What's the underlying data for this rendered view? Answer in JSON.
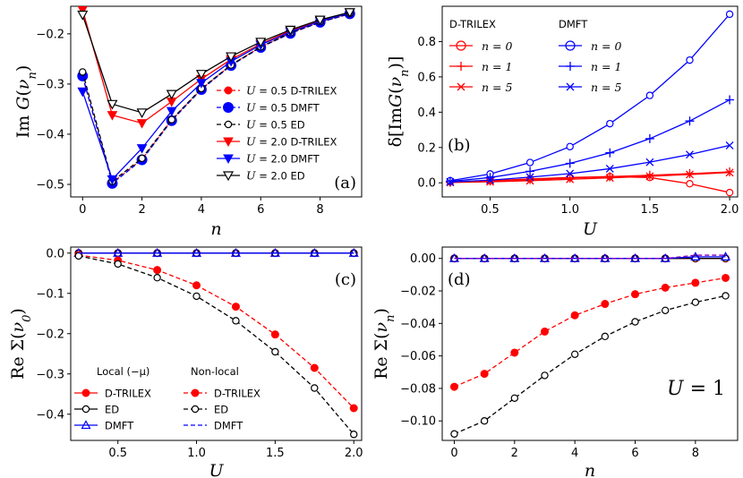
{
  "chart_data": [
    {
      "panel": "(a)",
      "type": "line",
      "xlabel": "n",
      "ylabel": "Im G(ν_n)",
      "xlim": [
        -0.4,
        9.4
      ],
      "ylim": [
        -0.525,
        -0.145
      ],
      "xticks": [
        0,
        2,
        4,
        6,
        8
      ],
      "yticks": [
        -0.5,
        -0.4,
        -0.3,
        -0.2
      ],
      "ytick_labels": [
        "−0.5",
        "−0.4",
        "−0.3",
        "−0.2"
      ],
      "legend_position": "center-right",
      "x": [
        0,
        1,
        2,
        3,
        4,
        5,
        6,
        7,
        8,
        9
      ],
      "series": [
        {
          "name": "U = 0.5 D-TRILEX",
          "color": "#ff0000",
          "marker": "dot",
          "dash": true,
          "values": [
            -0.285,
            -0.497,
            -0.45,
            -0.372,
            -0.31,
            -0.262,
            -0.226,
            -0.198,
            -0.177,
            -0.16
          ]
        },
        {
          "name": "U = 0.5 DMFT",
          "color": "#0000ff",
          "marker": "bigdot",
          "dash": true,
          "values": [
            -0.284,
            -0.498,
            -0.451,
            -0.373,
            -0.311,
            -0.263,
            -0.227,
            -0.199,
            -0.177,
            -0.16
          ]
        },
        {
          "name": "U = 0.5 ED",
          "color": "#000000",
          "marker": "circle",
          "dash": true,
          "values": [
            -0.276,
            -0.494,
            -0.448,
            -0.371,
            -0.309,
            -0.262,
            -0.226,
            -0.198,
            -0.176,
            -0.159
          ]
        },
        {
          "name": "U = 2.0 D-TRILEX",
          "color": "#ff0000",
          "marker": "tri-down",
          "dash": false,
          "values": [
            -0.152,
            -0.362,
            -0.378,
            -0.335,
            -0.29,
            -0.251,
            -0.22,
            -0.194,
            -0.174,
            -0.158
          ]
        },
        {
          "name": "U = 2.0 DMFT",
          "color": "#0000ff",
          "marker": "tri-down",
          "dash": false,
          "values": [
            -0.315,
            -0.49,
            -0.428,
            -0.354,
            -0.298,
            -0.255,
            -0.222,
            -0.196,
            -0.175,
            -0.158
          ]
        },
        {
          "name": "U = 2.0 ED",
          "color": "#000000",
          "marker": "tri-down-open",
          "dash": false,
          "values": [
            -0.162,
            -0.34,
            -0.357,
            -0.32,
            -0.28,
            -0.245,
            -0.216,
            -0.192,
            -0.172,
            -0.157
          ]
        }
      ],
      "legend": [
        {
          "prefix": "U",
          "mid": " = 0.5 ",
          "suffix": "D-TRILEX"
        },
        {
          "prefix": "U",
          "mid": " = 0.5 ",
          "suffix": "DMFT"
        },
        {
          "prefix": "U",
          "mid": " = 0.5 ",
          "suffix": "ED"
        },
        {
          "prefix": "U",
          "mid": " = 2.0 ",
          "suffix": "D-TRILEX"
        },
        {
          "prefix": "U",
          "mid": " = 2.0 ",
          "suffix": "DMFT"
        },
        {
          "prefix": "U",
          "mid": " = 2.0 ",
          "suffix": "ED"
        }
      ]
    },
    {
      "panel": "(b)",
      "type": "line",
      "xlabel": "U",
      "ylabel": "δ[ImG(ν_n)]",
      "xlim": [
        0.2,
        2.05
      ],
      "ylim": [
        -0.08,
        1.0
      ],
      "xticks": [
        0.5,
        1.0,
        1.5,
        2.0
      ],
      "xtick_labels": [
        "0.5",
        "1.0",
        "1.5",
        "2.0"
      ],
      "yticks": [
        0.0,
        0.2,
        0.4,
        0.6,
        0.8
      ],
      "ytick_labels": [
        "0.0",
        "0.2",
        "0.4",
        "0.6",
        "0.8"
      ],
      "legend_position": "top-left",
      "legend_headers": [
        "D-TRILEX",
        "DMFT"
      ],
      "x": [
        0.25,
        0.5,
        0.75,
        1.0,
        1.25,
        1.5,
        1.75,
        2.0
      ],
      "series": [
        {
          "name": "D-TRILEX n=0",
          "color": "#ff0000",
          "marker": "circle",
          "values": [
            0.005,
            0.012,
            0.022,
            0.03,
            0.035,
            0.03,
            -0.005,
            -0.055
          ]
        },
        {
          "name": "D-TRILEX n=1",
          "color": "#ff0000",
          "marker": "plus",
          "values": [
            0.003,
            0.01,
            0.018,
            0.027,
            0.035,
            0.043,
            0.052,
            0.062
          ]
        },
        {
          "name": "D-TRILEX n=5",
          "color": "#ff0000",
          "marker": "x",
          "values": [
            0.002,
            0.006,
            0.012,
            0.02,
            0.028,
            0.037,
            0.047,
            0.058
          ]
        },
        {
          "name": "DMFT n=0",
          "color": "#0000ff",
          "marker": "circle",
          "values": [
            0.012,
            0.05,
            0.115,
            0.205,
            0.335,
            0.495,
            0.695,
            0.955
          ]
        },
        {
          "name": "DMFT n=1",
          "color": "#0000ff",
          "marker": "plus",
          "values": [
            0.008,
            0.03,
            0.065,
            0.11,
            0.17,
            0.25,
            0.35,
            0.47
          ]
        },
        {
          "name": "DMFT n=5",
          "color": "#0000ff",
          "marker": "x",
          "values": [
            0.005,
            0.015,
            0.032,
            0.052,
            0.08,
            0.117,
            0.16,
            0.212
          ]
        }
      ],
      "legend": [
        "n = 0",
        "n = 1",
        "n = 5"
      ]
    },
    {
      "panel": "(c)",
      "type": "line",
      "xlabel": "U",
      "ylabel": "Re Σ(ν_0)",
      "xlim": [
        0.2,
        2.05
      ],
      "ylim": [
        -0.465,
        0.015
      ],
      "xticks": [
        0.5,
        1.0,
        1.5,
        2.0
      ],
      "xtick_labels": [
        "0.5",
        "1.0",
        "1.5",
        "2.0"
      ],
      "yticks": [
        0.0,
        -0.1,
        -0.2,
        -0.3,
        -0.4
      ],
      "ytick_labels": [
        "0.0",
        "−0.1",
        "−0.2",
        "−0.3",
        "−0.4"
      ],
      "legend_position": "bottom-left",
      "legend_headers": [
        "Local (−μ)",
        "Non-local"
      ],
      "x": [
        0.25,
        0.5,
        0.75,
        1.0,
        1.25,
        1.5,
        1.75,
        2.0
      ],
      "series": [
        {
          "name": "Local D-TRILEX",
          "color": "#ff0000",
          "marker": "dot",
          "dash": false,
          "values": [
            0.0,
            0.0,
            0.0,
            0.0,
            0.0,
            0.0,
            0.0,
            0.0
          ]
        },
        {
          "name": "Local ED",
          "color": "#000000",
          "marker": "circle",
          "dash": false,
          "values": [
            0.0,
            0.0,
            0.0,
            0.0,
            0.0,
            0.0,
            0.0,
            0.0
          ]
        },
        {
          "name": "Local DMFT",
          "color": "#0000ff",
          "marker": "tri-up-open",
          "dash": false,
          "values": [
            0.0,
            0.0,
            0.0,
            0.0,
            0.0,
            0.0,
            0.0,
            0.0
          ]
        },
        {
          "name": "Non-local D-TRILEX",
          "color": "#ff0000",
          "marker": "dot",
          "dash": true,
          "values": [
            -0.005,
            -0.018,
            -0.042,
            -0.08,
            -0.133,
            -0.202,
            -0.285,
            -0.385
          ]
        },
        {
          "name": "Non-local ED",
          "color": "#000000",
          "marker": "circle",
          "dash": true,
          "values": [
            -0.007,
            -0.027,
            -0.061,
            -0.107,
            -0.168,
            -0.245,
            -0.335,
            -0.45
          ]
        },
        {
          "name": "Non-local DMFT",
          "color": "#0000ff",
          "marker": "none",
          "dash": true,
          "values": [
            0.0,
            0.0,
            0.0,
            0.0,
            0.0,
            0.0,
            0.0,
            0.0
          ]
        }
      ],
      "legend": [
        "D-TRILEX",
        "ED",
        "DMFT"
      ]
    },
    {
      "panel": "(d)",
      "type": "line",
      "xlabel": "n",
      "ylabel": "Re Σ(ν_n)",
      "annotation": "U = 1",
      "xlim": [
        -0.4,
        9.4
      ],
      "ylim": [
        -0.112,
        0.007
      ],
      "xticks": [
        0,
        2,
        4,
        6,
        8
      ],
      "yticks": [
        0.0,
        -0.02,
        -0.04,
        -0.06,
        -0.08,
        -0.1
      ],
      "ytick_labels": [
        "0.00",
        "−0.02",
        "−0.04",
        "−0.06",
        "−0.08",
        "−0.10"
      ],
      "x": [
        0,
        1,
        2,
        3,
        4,
        5,
        6,
        7,
        8,
        9
      ],
      "series": [
        {
          "name": "Non-local D-TRILEX",
          "color": "#ff0000",
          "marker": "dot",
          "dash": true,
          "values": [
            -0.079,
            -0.071,
            -0.058,
            -0.045,
            -0.035,
            -0.028,
            -0.022,
            -0.018,
            -0.015,
            -0.012
          ]
        },
        {
          "name": "Non-local ED",
          "color": "#000000",
          "marker": "circle",
          "dash": true,
          "values": [
            -0.108,
            -0.1,
            -0.086,
            -0.072,
            -0.059,
            -0.048,
            -0.039,
            -0.032,
            -0.027,
            -0.023
          ]
        },
        {
          "name": "Local D-TRILEX",
          "color": "#ff0000",
          "marker": "dot",
          "dash": false,
          "values": [
            0.0,
            0.0,
            0.0,
            0.0,
            0.0,
            0.0,
            0.0,
            0.0,
            0.0,
            0.0
          ]
        },
        {
          "name": "Local ED",
          "color": "#000000",
          "marker": "circle",
          "dash": false,
          "values": [
            0.0,
            0.0,
            0.0,
            0.0,
            0.0,
            0.0,
            0.0,
            0.0,
            0.0,
            0.0
          ]
        },
        {
          "name": "Local DMFT",
          "color": "#0000ff",
          "marker": "tri-up-open",
          "dash": false,
          "values": [
            0.0,
            0.0,
            0.0,
            0.0,
            0.0,
            0.0,
            0.0,
            0.0,
            0.001,
            0.001
          ]
        },
        {
          "name": "Non-local DMFT",
          "color": "#8000c0",
          "marker": "none",
          "dash": true,
          "values": [
            0.0,
            0.0,
            0.0,
            0.0,
            0.0,
            0.0,
            0.0,
            0.0,
            0.002,
            0.002
          ]
        }
      ]
    }
  ]
}
